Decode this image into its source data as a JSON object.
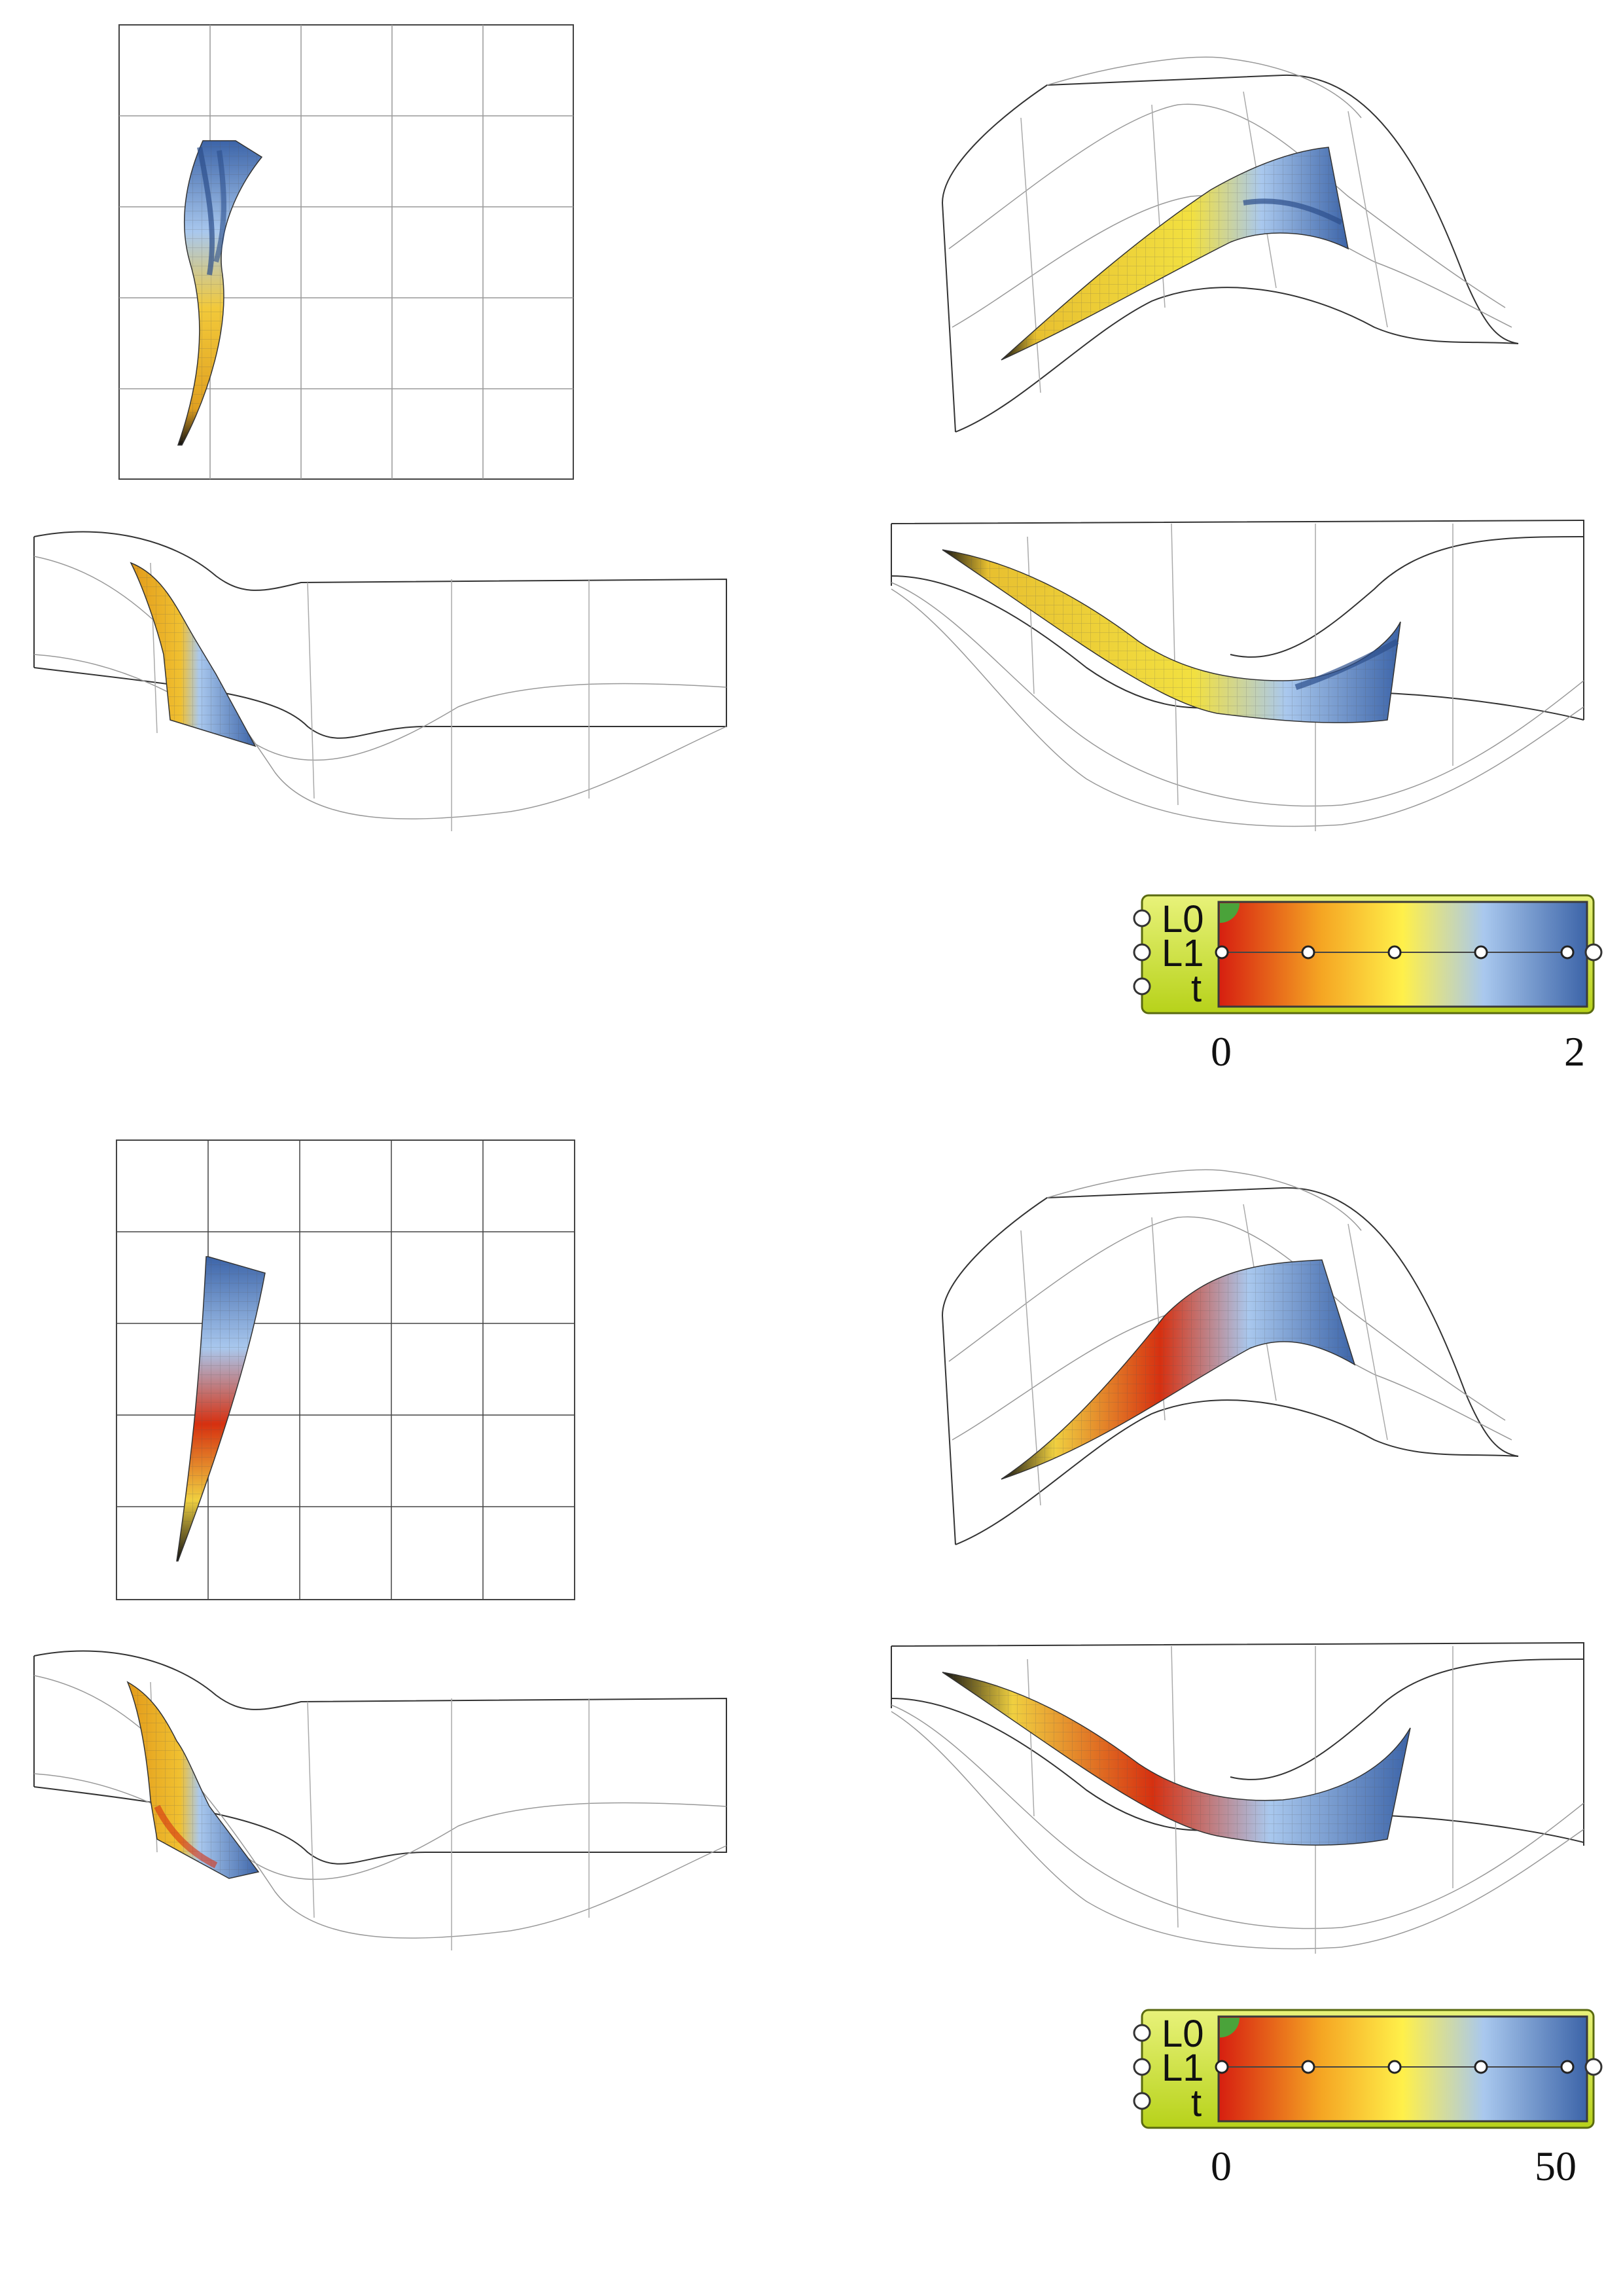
{
  "legends": [
    {
      "inputs": [
        "L0",
        "L1",
        "t"
      ],
      "min_label": "0",
      "max_label": "2",
      "colors": [
        "#d61e10",
        "#f5a623",
        "#fff04a",
        "#a9c8ee",
        "#3c64a8"
      ]
    },
    {
      "inputs": [
        "L0",
        "L1",
        "t"
      ],
      "min_label": "0",
      "max_label": "50",
      "colors": [
        "#d61e10",
        "#f5a623",
        "#fff04a",
        "#a9c8ee",
        "#3c64a8"
      ]
    }
  ]
}
